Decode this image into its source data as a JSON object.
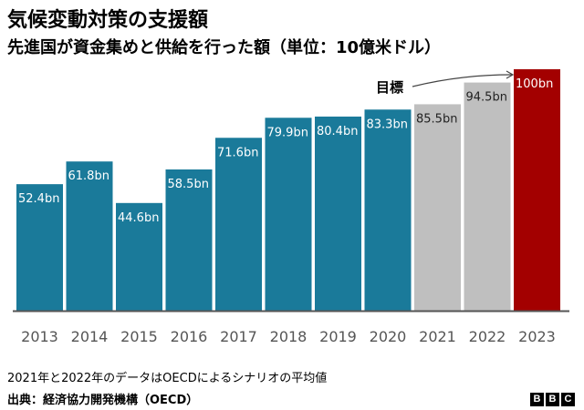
{
  "title": "気候変動対策の支援額",
  "subtitle": "先進国が資金集めと供給を行った額（単位：10億米ドル）",
  "note": "2021年と2022年のデータはOECDによるシナリオの平均値",
  "source": "出典：経済協力開発機構（OECD）",
  "logo": [
    "B",
    "B",
    "C"
  ],
  "colors": {
    "actual": "#1a7a9a",
    "scenario": "#bfbfbf",
    "target": "#a30000",
    "baseline": "#555555",
    "axis_label": "#555555"
  },
  "chart_data": {
    "type": "bar",
    "title": "気候変動対策の支援額",
    "subtitle": "先進国が資金集めと供給を行った額（単位：10億米ドル）",
    "categories": [
      "2013",
      "2014",
      "2015",
      "2016",
      "2017",
      "2018",
      "2019",
      "2020",
      "2021",
      "2022",
      "2023"
    ],
    "values": [
      52.4,
      61.8,
      44.6,
      58.5,
      71.6,
      79.9,
      80.4,
      83.3,
      85.5,
      94.5,
      100
    ],
    "labels": [
      "52.4bn",
      "61.8bn",
      "44.6bn",
      "58.5bn",
      "71.6bn",
      "79.9bn",
      "80.4bn",
      "83.3bn",
      "85.5bn",
      "94.5bn",
      "100bn"
    ],
    "kinds": [
      "actual",
      "actual",
      "actual",
      "actual",
      "actual",
      "actual",
      "actual",
      "actual",
      "scenario",
      "scenario",
      "target"
    ],
    "annotation": "目標",
    "ylim": [
      0,
      100
    ],
    "xlabel": "",
    "ylabel": ""
  }
}
